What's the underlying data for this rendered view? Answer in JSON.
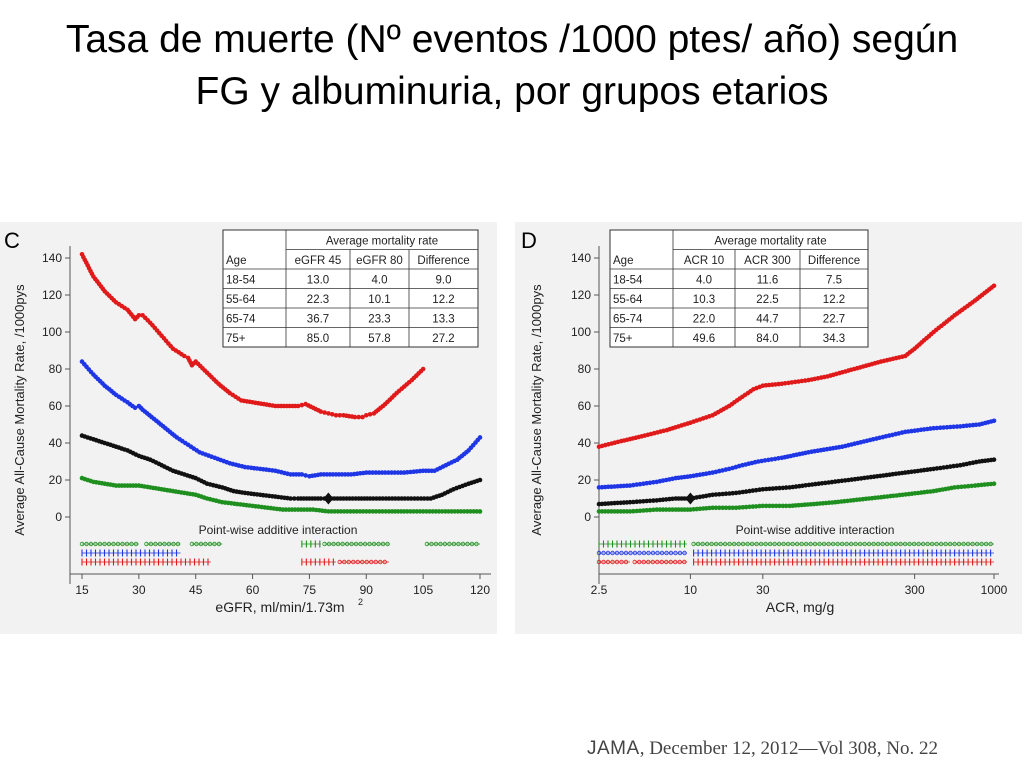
{
  "slide": {
    "title": "Tasa de muerte (Nº eventos /1000 ptes/ año) según FG y albuminuria, por grupos etarios",
    "citation": {
      "journal": "JAMA",
      "details": ", December 12, 2012—Vol 308, No. 22"
    }
  },
  "colors": {
    "age_18_54": "#1f8f1f",
    "age_55_64": "#111111",
    "age_65_74": "#1f36e6",
    "age_75_plus": "#e01a1a",
    "panel_bg": "#f2f2f2"
  },
  "chart_data": [
    {
      "panel_label": "C",
      "type": "line",
      "xlabel": "eGFR, ml/min/1.73m",
      "xlabel_superscript": "2",
      "ylabel": "Average All-Cause Mortality Rate, /1000pys",
      "xticks": [
        15,
        30,
        45,
        60,
        75,
        90,
        105,
        120
      ],
      "yticks": [
        0,
        20,
        40,
        60,
        80,
        100,
        120,
        140
      ],
      "xlim": [
        15,
        120
      ],
      "ylim": [
        0,
        150
      ],
      "x_scale": "linear",
      "series": [
        {
          "color": "#e01a1a",
          "points": [
            [
              15,
              142
            ],
            [
              18,
              130
            ],
            [
              21,
              122
            ],
            [
              24,
              116
            ],
            [
              27,
              112
            ],
            [
              29,
              107
            ],
            [
              30,
              109
            ],
            [
              31,
              109
            ],
            [
              33,
              105
            ],
            [
              36,
              98
            ],
            [
              39,
              91
            ],
            [
              42,
              87
            ],
            [
              43,
              86
            ],
            [
              44,
              82
            ],
            [
              45,
              84
            ],
            [
              48,
              78
            ],
            [
              51,
              72
            ],
            [
              54,
              67
            ],
            [
              57,
              63
            ],
            [
              60,
              62
            ],
            [
              63,
              61
            ],
            [
              66,
              60
            ],
            [
              69,
              60
            ],
            [
              72,
              60
            ],
            [
              74,
              61
            ],
            [
              76,
              59
            ],
            [
              78,
              57
            ],
            [
              80,
              56
            ],
            [
              82,
              55
            ],
            [
              84,
              55
            ],
            [
              87,
              54
            ],
            [
              89,
              54
            ],
            [
              90,
              55
            ],
            [
              92,
              56
            ],
            [
              95,
              61
            ],
            [
              98,
              67
            ],
            [
              102,
              74
            ],
            [
              105,
              80
            ]
          ]
        },
        {
          "color": "#1f36e6",
          "points": [
            [
              15,
              84
            ],
            [
              18,
              77
            ],
            [
              21,
              71
            ],
            [
              24,
              66
            ],
            [
              27,
              62
            ],
            [
              29,
              59
            ],
            [
              30,
              60
            ],
            [
              31,
              58
            ],
            [
              34,
              53
            ],
            [
              37,
              48
            ],
            [
              40,
              43
            ],
            [
              43,
              39
            ],
            [
              46,
              35
            ],
            [
              50,
              32
            ],
            [
              54,
              29
            ],
            [
              58,
              27
            ],
            [
              62,
              26
            ],
            [
              66,
              25
            ],
            [
              70,
              23
            ],
            [
              73,
              23
            ],
            [
              75,
              22
            ],
            [
              78,
              23
            ],
            [
              82,
              23
            ],
            [
              86,
              23
            ],
            [
              90,
              24
            ],
            [
              95,
              24
            ],
            [
              100,
              24
            ],
            [
              105,
              25
            ],
            [
              108,
              25
            ],
            [
              111,
              28
            ],
            [
              114,
              31
            ],
            [
              117,
              36
            ],
            [
              120,
              43
            ]
          ]
        },
        {
          "color": "#111111",
          "points": [
            [
              15,
              44
            ],
            [
              18,
              42
            ],
            [
              21,
              40
            ],
            [
              24,
              38
            ],
            [
              27,
              36
            ],
            [
              30,
              33
            ],
            [
              33,
              31
            ],
            [
              36,
              28
            ],
            [
              39,
              25
            ],
            [
              42,
              23
            ],
            [
              45,
              21
            ],
            [
              48,
              18
            ],
            [
              52,
              16
            ],
            [
              55,
              14
            ],
            [
              58,
              13
            ],
            [
              62,
              12
            ],
            [
              66,
              11
            ],
            [
              70,
              10
            ],
            [
              72,
              10
            ],
            [
              75,
              10
            ],
            [
              78,
              10
            ],
            [
              80,
              10
            ],
            [
              84,
              10
            ],
            [
              88,
              10
            ],
            [
              91,
              10
            ],
            [
              96,
              10
            ],
            [
              101,
              10
            ],
            [
              107,
              10
            ],
            [
              110,
              12
            ],
            [
              113,
              15
            ],
            [
              117,
              18
            ],
            [
              120,
              20
            ]
          ]
        },
        {
          "color": "#1f8f1f",
          "points": [
            [
              15,
              21
            ],
            [
              18,
              19
            ],
            [
              21,
              18
            ],
            [
              24,
              17
            ],
            [
              27,
              17
            ],
            [
              30,
              17
            ],
            [
              33,
              16
            ],
            [
              36,
              15
            ],
            [
              39,
              14
            ],
            [
              42,
              13
            ],
            [
              45,
              12
            ],
            [
              48,
              10
            ],
            [
              52,
              8
            ],
            [
              56,
              7
            ],
            [
              60,
              6
            ],
            [
              64,
              5
            ],
            [
              68,
              4
            ],
            [
              72,
              4
            ],
            [
              76,
              4
            ],
            [
              80,
              3
            ],
            [
              85,
              3
            ],
            [
              90,
              3
            ],
            [
              96,
              3
            ],
            [
              100,
              3
            ],
            [
              105,
              3
            ],
            [
              110,
              3
            ],
            [
              115,
              3
            ],
            [
              120,
              3
            ]
          ]
        }
      ],
      "reference_marker": {
        "x": 80,
        "y": 10
      },
      "interaction_label": "Point-wise additive interaction",
      "interaction_rows": [
        {
          "color": "#1f8f1f",
          "segments": [
            {
              "from": 15,
              "to": 30,
              "mark": "o"
            },
            {
              "from": 32,
              "to": 41,
              "mark": "o"
            },
            {
              "from": 44,
              "to": 52,
              "mark": "o"
            },
            {
              "from": 73,
              "to": 78,
              "mark": "+"
            },
            {
              "from": 79,
              "to": 96,
              "mark": "o"
            },
            {
              "from": 106,
              "to": 120,
              "mark": "o"
            }
          ]
        },
        {
          "color": "#1f36e6",
          "segments": [
            {
              "from": 15,
              "to": 41,
              "mark": "+"
            }
          ]
        },
        {
          "color": "#e01a1a",
          "segments": [
            {
              "from": 15,
              "to": 49,
              "mark": "+"
            },
            {
              "from": 73,
              "to": 82,
              "mark": "+"
            },
            {
              "from": 83,
              "to": 96,
              "mark": "o"
            }
          ]
        }
      ],
      "table": {
        "header_top": "Average mortality rate",
        "columns": [
          "Age",
          "eGFR 45",
          "eGFR 80",
          "Difference"
        ],
        "rows": [
          [
            "18-54",
            "13.0",
            "4.0",
            "9.0"
          ],
          [
            "55-64",
            "22.3",
            "10.1",
            "12.2"
          ],
          [
            "65-74",
            "36.7",
            "23.3",
            "13.3"
          ],
          [
            "75+",
            "85.0",
            "57.8",
            "27.2"
          ]
        ]
      }
    },
    {
      "panel_label": "D",
      "type": "line",
      "xlabel": "ACR, mg/g",
      "ylabel": "Average All-Cause Mortality Rate, /1000pys",
      "xticks": [
        2.5,
        10,
        30,
        300,
        1000
      ],
      "yticks": [
        0,
        20,
        40,
        60,
        80,
        100,
        120,
        140
      ],
      "xlim": [
        2.5,
        1000
      ],
      "ylim": [
        0,
        150
      ],
      "x_scale": "log",
      "series": [
        {
          "color": "#e01a1a",
          "points": [
            [
              2.5,
              38
            ],
            [
              3.5,
              41
            ],
            [
              5,
              44
            ],
            [
              7,
              47
            ],
            [
              10,
              51
            ],
            [
              14,
              55
            ],
            [
              18,
              60
            ],
            [
              22,
              65
            ],
            [
              26,
              69
            ],
            [
              30,
              71
            ],
            [
              40,
              72
            ],
            [
              60,
              74
            ],
            [
              80,
              76
            ],
            [
              120,
              80
            ],
            [
              180,
              84
            ],
            [
              260,
              87
            ],
            [
              300,
              91
            ],
            [
              400,
              100
            ],
            [
              550,
              109
            ],
            [
              750,
              117
            ],
            [
              1000,
              125
            ]
          ]
        },
        {
          "color": "#1f36e6",
          "points": [
            [
              2.5,
              16
            ],
            [
              4,
              17
            ],
            [
              6,
              19
            ],
            [
              8,
              21
            ],
            [
              10,
              22
            ],
            [
              14,
              24
            ],
            [
              18,
              26
            ],
            [
              22,
              28
            ],
            [
              28,
              30
            ],
            [
              40,
              32
            ],
            [
              60,
              35
            ],
            [
              100,
              38
            ],
            [
              160,
              42
            ],
            [
              260,
              46
            ],
            [
              400,
              48
            ],
            [
              600,
              49
            ],
            [
              800,
              50
            ],
            [
              1000,
              52
            ]
          ]
        },
        {
          "color": "#111111",
          "points": [
            [
              2.5,
              7
            ],
            [
              4,
              8
            ],
            [
              6,
              9
            ],
            [
              8,
              10
            ],
            [
              10,
              10
            ],
            [
              14,
              12
            ],
            [
              20,
              13
            ],
            [
              30,
              15
            ],
            [
              45,
              16
            ],
            [
              70,
              18
            ],
            [
              110,
              20
            ],
            [
              170,
              22
            ],
            [
              260,
              24
            ],
            [
              400,
              26
            ],
            [
              600,
              28
            ],
            [
              800,
              30
            ],
            [
              1000,
              31
            ]
          ]
        },
        {
          "color": "#1f8f1f",
          "points": [
            [
              2.5,
              3
            ],
            [
              4,
              3
            ],
            [
              6,
              4
            ],
            [
              8,
              4
            ],
            [
              10,
              4
            ],
            [
              14,
              5
            ],
            [
              20,
              5
            ],
            [
              30,
              6
            ],
            [
              45,
              6
            ],
            [
              65,
              7
            ],
            [
              90,
              8
            ],
            [
              150,
              10
            ],
            [
              250,
              12
            ],
            [
              400,
              14
            ],
            [
              550,
              16
            ],
            [
              750,
              17
            ],
            [
              1000,
              18
            ]
          ]
        }
      ],
      "reference_marker": {
        "x": 10,
        "y": 10
      },
      "interaction_label": "Point-wise additive interaction",
      "interaction_rows": [
        {
          "color": "#1f8f1f",
          "segments": [
            {
              "from": 2.5,
              "to": 9.5,
              "mark": "+"
            },
            {
              "from": 10.5,
              "to": 1000,
              "mark": "o"
            }
          ]
        },
        {
          "color": "#1f36e6",
          "segments": [
            {
              "from": 2.5,
              "to": 9.5,
              "mark": "o"
            },
            {
              "from": 10.5,
              "to": 1000,
              "mark": "+"
            }
          ]
        },
        {
          "color": "#e01a1a",
          "segments": [
            {
              "from": 2.5,
              "to": 4,
              "mark": "o"
            },
            {
              "from": 4.3,
              "to": 9.5,
              "mark": "o"
            },
            {
              "from": 10.5,
              "to": 1000,
              "mark": "+"
            }
          ]
        }
      ],
      "table": {
        "header_top": "Average mortality rate",
        "columns": [
          "Age",
          "ACR 10",
          "ACR 300",
          "Difference"
        ],
        "rows": [
          [
            "18-54",
            "4.0",
            "11.6",
            "7.5"
          ],
          [
            "55-64",
            "10.3",
            "22.5",
            "12.2"
          ],
          [
            "65-74",
            "22.0",
            "44.7",
            "22.7"
          ],
          [
            "75+",
            "49.6",
            "84.0",
            "34.3"
          ]
        ]
      }
    }
  ]
}
